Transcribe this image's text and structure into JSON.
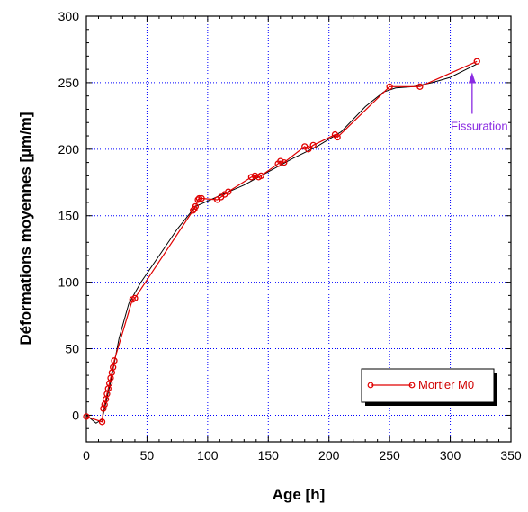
{
  "chart_data": {
    "type": "line",
    "title": "",
    "xlabel": "Age [h]",
    "ylabel": "Déformations moyennes [µm/m]",
    "xlim": [
      0,
      350
    ],
    "ylim": [
      -20,
      300
    ],
    "x_ticks": [
      0,
      50,
      100,
      150,
      200,
      250,
      300,
      350
    ],
    "y_ticks": [
      0,
      50,
      100,
      150,
      200,
      250,
      300
    ],
    "grid": true,
    "legend_position": "bottom-right",
    "colors": {
      "series": "#e00000",
      "fit": "#000000",
      "grid": "#0000ff",
      "annotation": "#8a2be2"
    },
    "series": [
      {
        "name": "Mortier M0",
        "x": [
          0,
          13,
          14,
          15,
          16,
          17,
          18,
          19,
          20,
          21,
          22,
          23,
          38,
          40,
          88,
          89,
          90,
          92,
          93,
          95,
          108,
          111,
          114,
          117,
          136,
          139,
          142,
          144,
          158,
          160,
          163,
          180,
          183,
          187,
          205,
          207,
          250,
          275,
          322
        ],
        "y": [
          -1,
          -5,
          5,
          8,
          12,
          16,
          20,
          24,
          28,
          32,
          36,
          41,
          87,
          88,
          154,
          155,
          157,
          162,
          163,
          163,
          162,
          164,
          166,
          168,
          179,
          180,
          179,
          180,
          189,
          191,
          190,
          202,
          200,
          203,
          211,
          209,
          247,
          247,
          266
        ]
      }
    ],
    "fit_line": {
      "x": [
        0,
        8,
        13,
        20,
        27,
        35,
        45,
        60,
        75,
        90,
        110,
        130,
        150,
        170,
        190,
        210,
        230,
        245,
        255,
        270,
        285,
        300,
        322
      ],
      "y": [
        0,
        -6,
        -3,
        25,
        58,
        84,
        100,
        120,
        140,
        157,
        165,
        173,
        183,
        193,
        202,
        213,
        232,
        243,
        246,
        247,
        250,
        254,
        264
      ]
    },
    "annotation": {
      "text": "Fissuration",
      "arrow_to": {
        "x": 318,
        "y": 255
      }
    }
  }
}
